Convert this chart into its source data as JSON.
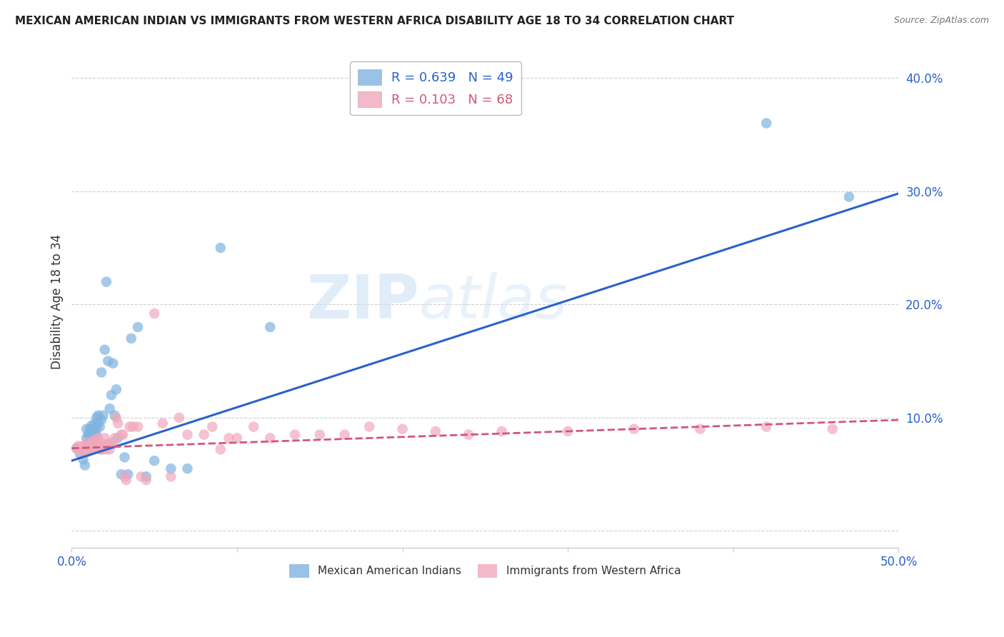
{
  "title": "MEXICAN AMERICAN INDIAN VS IMMIGRANTS FROM WESTERN AFRICA DISABILITY AGE 18 TO 34 CORRELATION CHART",
  "source": "Source: ZipAtlas.com",
  "ylabel": "Disability Age 18 to 34",
  "xlim": [
    0.0,
    0.5
  ],
  "ylim": [
    -0.015,
    0.42
  ],
  "xticks": [
    0.0,
    0.1,
    0.2,
    0.3,
    0.4,
    0.5
  ],
  "xticklabels": [
    "0.0%",
    "",
    "",
    "",
    "",
    "50.0%"
  ],
  "yticks": [
    0.0,
    0.1,
    0.2,
    0.3,
    0.4
  ],
  "yticklabels": [
    "",
    "10.0%",
    "20.0%",
    "30.0%",
    "40.0%"
  ],
  "blue_color": "#7fb3e0",
  "pink_color": "#f0a8bc",
  "blue_line_color": "#2962cc",
  "pink_line_color": "#d05878",
  "watermark_zip": "ZIP",
  "watermark_atlas": "atlas",
  "legend_label1": "R = 0.639   N = 49",
  "legend_label2": "R = 0.103   N = 68",
  "blue_label": "Mexican American Indians",
  "pink_label": "Immigrants from Western Africa",
  "blue_scatter_x": [
    0.003,
    0.005,
    0.007,
    0.008,
    0.009,
    0.009,
    0.01,
    0.01,
    0.01,
    0.011,
    0.011,
    0.012,
    0.012,
    0.012,
    0.013,
    0.013,
    0.014,
    0.014,
    0.015,
    0.015,
    0.015,
    0.016,
    0.016,
    0.017,
    0.018,
    0.018,
    0.019,
    0.02,
    0.021,
    0.022,
    0.023,
    0.024,
    0.025,
    0.026,
    0.027,
    0.028,
    0.03,
    0.032,
    0.034,
    0.036,
    0.04,
    0.045,
    0.05,
    0.06,
    0.07,
    0.09,
    0.12,
    0.42,
    0.47
  ],
  "blue_scatter_y": [
    0.073,
    0.068,
    0.063,
    0.058,
    0.09,
    0.082,
    0.077,
    0.085,
    0.072,
    0.09,
    0.083,
    0.088,
    0.082,
    0.093,
    0.09,
    0.082,
    0.088,
    0.095,
    0.085,
    0.092,
    0.1,
    0.095,
    0.102,
    0.092,
    0.098,
    0.14,
    0.102,
    0.16,
    0.22,
    0.15,
    0.108,
    0.12,
    0.148,
    0.102,
    0.125,
    0.082,
    0.05,
    0.065,
    0.05,
    0.17,
    0.18,
    0.048,
    0.062,
    0.055,
    0.055,
    0.25,
    0.18,
    0.36,
    0.295
  ],
  "pink_scatter_x": [
    0.003,
    0.004,
    0.005,
    0.006,
    0.007,
    0.008,
    0.009,
    0.009,
    0.01,
    0.01,
    0.011,
    0.012,
    0.012,
    0.013,
    0.013,
    0.014,
    0.015,
    0.015,
    0.016,
    0.016,
    0.017,
    0.018,
    0.018,
    0.019,
    0.02,
    0.02,
    0.021,
    0.022,
    0.023,
    0.024,
    0.025,
    0.026,
    0.027,
    0.028,
    0.03,
    0.031,
    0.032,
    0.033,
    0.035,
    0.037,
    0.04,
    0.042,
    0.045,
    0.05,
    0.055,
    0.06,
    0.065,
    0.07,
    0.08,
    0.085,
    0.09,
    0.095,
    0.1,
    0.11,
    0.12,
    0.135,
    0.15,
    0.165,
    0.18,
    0.2,
    0.22,
    0.24,
    0.26,
    0.3,
    0.34,
    0.38,
    0.42,
    0.46
  ],
  "pink_scatter_y": [
    0.073,
    0.075,
    0.072,
    0.07,
    0.075,
    0.073,
    0.072,
    0.078,
    0.07,
    0.075,
    0.072,
    0.072,
    0.077,
    0.072,
    0.08,
    0.075,
    0.075,
    0.08,
    0.075,
    0.082,
    0.072,
    0.072,
    0.077,
    0.072,
    0.075,
    0.082,
    0.072,
    0.077,
    0.072,
    0.078,
    0.077,
    0.082,
    0.1,
    0.095,
    0.085,
    0.085,
    0.048,
    0.045,
    0.092,
    0.092,
    0.092,
    0.048,
    0.045,
    0.192,
    0.095,
    0.048,
    0.1,
    0.085,
    0.085,
    0.092,
    0.072,
    0.082,
    0.082,
    0.092,
    0.082,
    0.085,
    0.085,
    0.085,
    0.092,
    0.09,
    0.088,
    0.085,
    0.088,
    0.088,
    0.09,
    0.09,
    0.092,
    0.09
  ],
  "blue_fit_x": [
    0.0,
    0.5
  ],
  "blue_fit_y": [
    0.062,
    0.298
  ],
  "pink_fit_x": [
    0.0,
    0.5
  ],
  "pink_fit_y": [
    0.073,
    0.098
  ],
  "background_color": "#ffffff",
  "grid_color": "#d0d0d0"
}
